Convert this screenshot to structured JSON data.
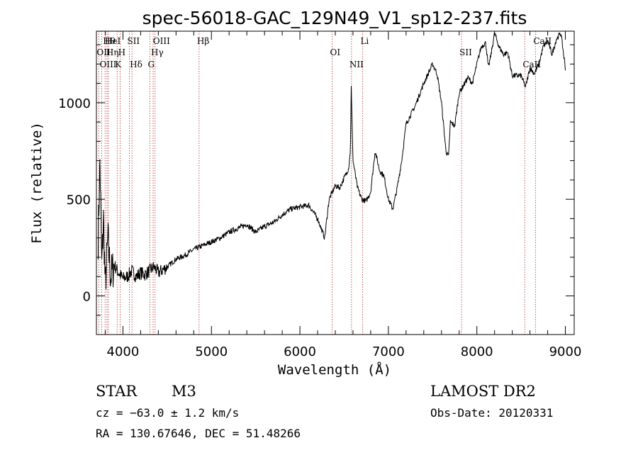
{
  "chart_data": {
    "type": "line",
    "title": "spec-56018-GAC_129N49_V1_sp12-237.fits",
    "xlabel": "Wavelength (Å)",
    "ylabel": "Flux (relative)",
    "xlim": [
      3700,
      9100
    ],
    "ylim": [
      -200,
      1370
    ],
    "x_ticks": [
      4000,
      5000,
      6000,
      7000,
      8000,
      9000
    ],
    "y_ticks": [
      0,
      500,
      1000
    ],
    "grid": false,
    "series": [
      {
        "x": [
          3720,
          3740,
          3760,
          3780,
          3800,
          3830,
          3860,
          3900,
          3950,
          4000,
          4050,
          4100,
          4150,
          4200,
          4250,
          4300,
          4350,
          4400,
          4500,
          4600,
          4700,
          4800,
          4900,
          5000,
          5100,
          5200,
          5300,
          5400,
          5500,
          5600,
          5700,
          5800,
          5900,
          6000,
          6100,
          6200,
          6280,
          6330,
          6400,
          6450,
          6500,
          6550,
          6570,
          6580,
          6600,
          6650,
          6700,
          6750,
          6800,
          6850,
          6900,
          6950,
          7000,
          7050,
          7100,
          7150,
          7200,
          7300,
          7400,
          7500,
          7550,
          7600,
          7650,
          7680,
          7700,
          7750,
          7800,
          7850,
          7900,
          7950,
          8000,
          8050,
          8100,
          8130,
          8160,
          8200,
          8250,
          8300,
          8350,
          8400,
          8450,
          8500,
          8550,
          8600,
          8650,
          8700,
          8750,
          8800,
          8850,
          8900,
          8950,
          9000
        ],
        "y": [
          300,
          700,
          150,
          400,
          50,
          300,
          100,
          160,
          120,
          90,
          100,
          130,
          100,
          120,
          110,
          130,
          150,
          120,
          150,
          190,
          210,
          240,
          260,
          280,
          300,
          330,
          350,
          370,
          330,
          360,
          380,
          420,
          450,
          460,
          470,
          400,
          300,
          500,
          570,
          560,
          610,
          660,
          750,
          1080,
          700,
          560,
          500,
          490,
          540,
          750,
          650,
          620,
          500,
          450,
          560,
          700,
          890,
          980,
          1100,
          1200,
          1150,
          1000,
          750,
          720,
          900,
          880,
          1050,
          1090,
          1130,
          1100,
          1200,
          1290,
          1310,
          1180,
          1250,
          1360,
          1290,
          1250,
          1260,
          1140,
          1140,
          1140,
          1080,
          1180,
          1150,
          1200,
          1290,
          1320,
          1250,
          1330,
          1360,
          1180
        ]
      }
    ],
    "annotations": [
      {
        "label": "Hθ",
        "x": 3798
      },
      {
        "label": "OII",
        "x": 3727
      },
      {
        "label": "OIII",
        "x": 3760
      },
      {
        "label": "HeI",
        "x": 3820
      },
      {
        "label": "Hη",
        "x": 3835
      },
      {
        "label": "K",
        "x": 3934
      },
      {
        "label": "SII",
        "x": 4072
      },
      {
        "label": "H",
        "x": 3969
      },
      {
        "label": "Hδ",
        "x": 4102
      },
      {
        "label": "OIII",
        "x": 4363
      },
      {
        "label": "Hγ",
        "x": 4341
      },
      {
        "label": "G",
        "x": 4305
      },
      {
        "label": "Hβ",
        "x": 4861
      },
      {
        "label": "OI",
        "x": 6364
      },
      {
        "label": "NII",
        "x": 6583
      },
      {
        "label": "Li",
        "x": 6708
      },
      {
        "label": "SII",
        "x": 7827
      },
      {
        "label": "CaII",
        "x": 8542
      },
      {
        "label": "CaII",
        "x": 8662
      }
    ]
  },
  "info": {
    "class_label": "STAR",
    "subclass": "M3",
    "survey": "LAMOST DR2",
    "cz": "cz = −63.0 ± 1.2 km/s",
    "obs_date": "Obs-Date: 20120331",
    "coords": "RA = 130.67646, DEC =  51.48266"
  }
}
